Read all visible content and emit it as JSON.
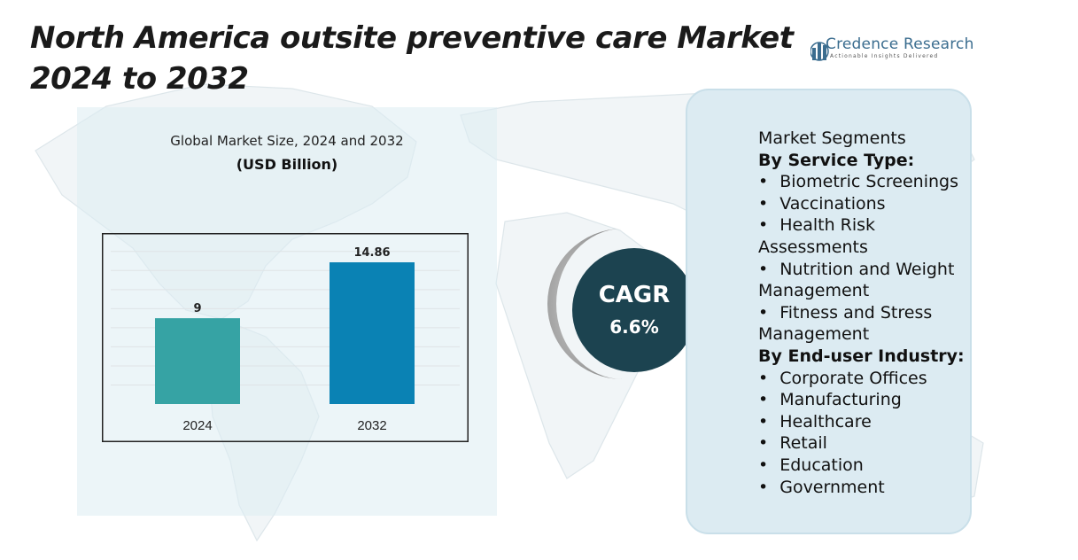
{
  "header": {
    "title": "North America outsite preventive care Market 2024 to 2032"
  },
  "logo": {
    "brand": "Credence Research",
    "tagline": "Actionable Insights Delivered"
  },
  "colors": {
    "bar_2024": "#36a3a4",
    "bar_2032": "#0a82b4",
    "cagr_circle": "#1c4350",
    "panel_bg": "#dcebf2"
  },
  "cagr": {
    "label": "CAGR",
    "value": "6.6%"
  },
  "segments": {
    "title": "Market Segments",
    "service_heading": "By Service Type:",
    "service_items": [
      "Biometric Screenings",
      "Vaccinations",
      "Health Risk Assessments",
      "Nutrition and Weight Management",
      "Fitness and Stress Management"
    ],
    "industry_heading": "By End-user Industry:",
    "industry_items": [
      "Corporate Offices",
      "Manufacturing",
      "Healthcare",
      "Retail",
      "Education",
      "Government"
    ]
  },
  "chart_data": {
    "type": "bar",
    "title": "Global Market Size, 2024 and 2032",
    "unit_label": "(USD Billion)",
    "categories": [
      "2024",
      "2032"
    ],
    "values": [
      9,
      14.86
    ],
    "value_labels": [
      "9",
      "14.86"
    ],
    "xlabel": "",
    "ylabel": "",
    "ylim": [
      0,
      17
    ],
    "grid": true,
    "legend": "none"
  }
}
